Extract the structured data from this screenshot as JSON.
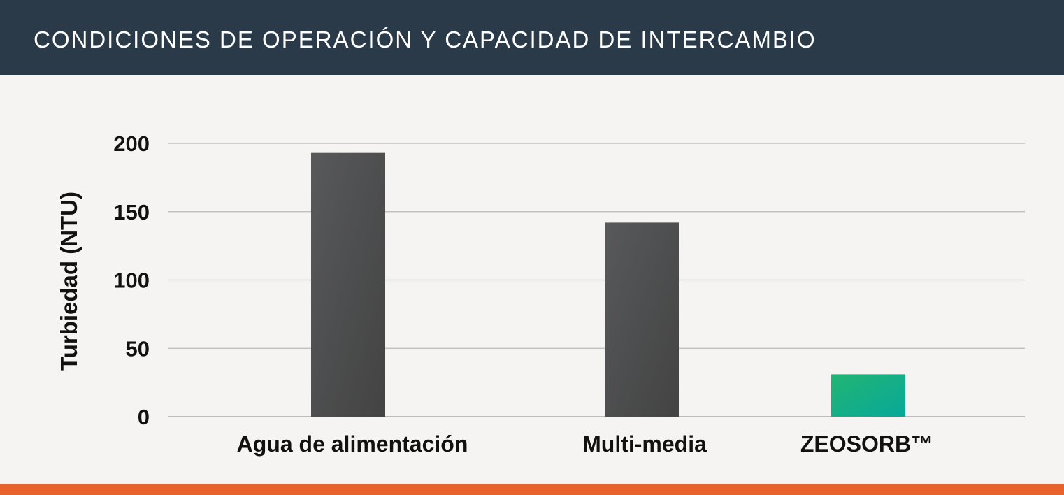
{
  "header": {
    "title": "CONDICIONES DE OPERACIÓN Y CAPACIDAD DE INTERCAMBIO"
  },
  "colors": {
    "header_bg": "#2a3a49",
    "bar_dark": "#4a4b4c",
    "bar_green_start": "#22b573",
    "bar_green_end": "#08a89a",
    "accent": "#e8622c",
    "grid": "#b9b9b9"
  },
  "chart_data": {
    "type": "bar",
    "categories": [
      "Agua de alimentación",
      "Multi-media",
      "ZEOSORB™"
    ],
    "values": [
      193,
      142,
      31
    ],
    "title": "",
    "xlabel": "",
    "ylabel": "Turbiedad (NTU)",
    "ylim": [
      0,
      200
    ],
    "yticks": [
      0,
      50,
      100,
      150,
      200
    ],
    "grid": true
  }
}
